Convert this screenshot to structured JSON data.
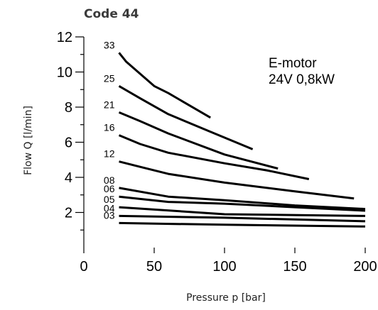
{
  "chart_data": {
    "type": "line",
    "title": "Code 44",
    "xlabel": "Pressure p [bar]",
    "ylabel": "Flow Q [l/min]",
    "xlim": [
      0,
      200
    ],
    "ylim": [
      0,
      12
    ],
    "x_ticks": [
      "0",
      "50",
      "100",
      "150",
      "200"
    ],
    "y_ticks": [
      "2",
      "4",
      "6",
      "8",
      "10",
      "12"
    ],
    "grid": false,
    "annotation": [
      "E-motor",
      "24V 0,8kW"
    ],
    "series": [
      {
        "name": "33",
        "points": [
          [
            25,
            11.1
          ],
          [
            30,
            10.6
          ],
          [
            50,
            9.2
          ],
          [
            60,
            8.8
          ],
          [
            90,
            7.4
          ]
        ]
      },
      {
        "name": "25",
        "points": [
          [
            25,
            9.2
          ],
          [
            40,
            8.5
          ],
          [
            60,
            7.6
          ],
          [
            90,
            6.6
          ],
          [
            120,
            5.6
          ]
        ]
      },
      {
        "name": "21",
        "points": [
          [
            25,
            7.7
          ],
          [
            40,
            7.2
          ],
          [
            60,
            6.5
          ],
          [
            100,
            5.3
          ],
          [
            138,
            4.5
          ]
        ]
      },
      {
        "name": "16",
        "points": [
          [
            25,
            6.4
          ],
          [
            40,
            5.9
          ],
          [
            60,
            5.4
          ],
          [
            100,
            4.8
          ],
          [
            130,
            4.4
          ],
          [
            160,
            3.9
          ]
        ]
      },
      {
        "name": "12",
        "points": [
          [
            25,
            4.9
          ],
          [
            40,
            4.6
          ],
          [
            60,
            4.2
          ],
          [
            100,
            3.7
          ],
          [
            150,
            3.2
          ],
          [
            192,
            2.8
          ]
        ]
      },
      {
        "name": "08",
        "points": [
          [
            25,
            3.4
          ],
          [
            60,
            2.9
          ],
          [
            100,
            2.7
          ],
          [
            150,
            2.4
          ],
          [
            200,
            2.2
          ]
        ]
      },
      {
        "name": "06",
        "points": [
          [
            25,
            2.9
          ],
          [
            60,
            2.6
          ],
          [
            100,
            2.5
          ],
          [
            150,
            2.3
          ],
          [
            200,
            2.1
          ]
        ]
      },
      {
        "name": "05",
        "points": [
          [
            25,
            2.3
          ],
          [
            100,
            1.9
          ],
          [
            200,
            1.8
          ]
        ]
      },
      {
        "name": "04",
        "points": [
          [
            25,
            1.8
          ],
          [
            100,
            1.7
          ],
          [
            200,
            1.5
          ]
        ]
      },
      {
        "name": "03",
        "points": [
          [
            25,
            1.4
          ],
          [
            100,
            1.3
          ],
          [
            200,
            1.2
          ]
        ]
      }
    ]
  }
}
